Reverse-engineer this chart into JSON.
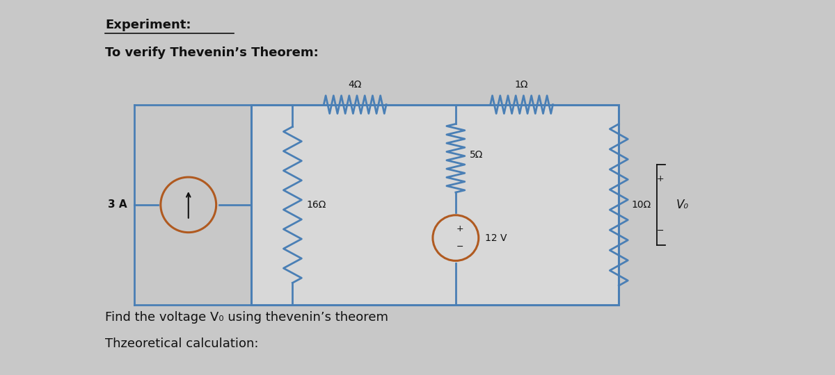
{
  "title1": "Experiment:",
  "title2": "To verify Thevenin’s Theorem:",
  "subtitle": "Find the voltage V₀ using thevenin’s theorem",
  "footer": "Thzeoretical calculation:",
  "bg_color": "#c8c8c8",
  "circuit_border": "#4a7fb5",
  "wire_color": "#4a7fb5",
  "component_color": "#4a7fb5",
  "text_color": "#111111",
  "current_source_color": "#b05a20",
  "voltage_source_color": "#b05a20",
  "resistor_4": "4Ω",
  "resistor_1": "1Ω",
  "resistor_5": "5Ω",
  "resistor_16": "16Ω",
  "resistor_10": "10Ω",
  "voltage_12": "12 V",
  "current_3A": "3 A",
  "label_Vo": "V₀"
}
